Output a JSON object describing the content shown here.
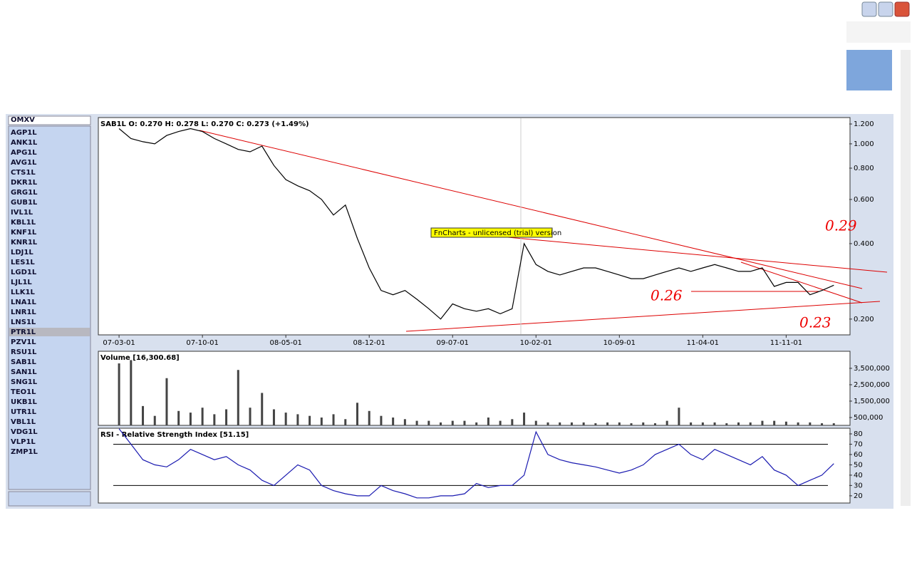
{
  "symbols": {
    "dropdown": "OMXV",
    "selected_index": 20,
    "items": [
      "AGP1L",
      "ANK1L",
      "APG1L",
      "AVG1L",
      "CTS1L",
      "DKR1L",
      "GRG1L",
      "GUB1L",
      "IVL1L",
      "KBL1L",
      "KNF1L",
      "KNR1L",
      "LDJ1L",
      "LES1L",
      "LGD1L",
      "LJL1L",
      "LLK1L",
      "LNA1L",
      "LNR1L",
      "LNS1L",
      "PTR1L",
      "PZV1L",
      "RSU1L",
      "SAB1L",
      "SAN1L",
      "SNG1L",
      "TEO1L",
      "UKB1L",
      "UTR1L",
      "VBL1L",
      "VDG1L",
      "VLP1L",
      "ZMP1L"
    ]
  },
  "chart_data": [
    {
      "type": "line",
      "title": "SAB1L  O: 0.270  H: 0.278  L: 0.270  C: 0.273  (+1.49%)",
      "log": true,
      "color": "#000000",
      "annotations": [
        "FnCharts - unlicensed (trial) version",
        "0.29",
        "0.26",
        "0.23"
      ],
      "xlim": [
        -1.68,
        61.3
      ],
      "ylim": [
        0.173,
        1.273
      ],
      "xticks": [
        {
          "value": 0,
          "label": "07-03-01"
        },
        {
          "value": 7,
          "label": "07-10-01"
        },
        {
          "value": 14,
          "label": "08-05-01"
        },
        {
          "value": 21,
          "label": "08-12-01"
        },
        {
          "value": 28,
          "label": "09-07-01"
        },
        {
          "value": 35,
          "label": "10-02-01"
        },
        {
          "value": 42,
          "label": "10-09-01"
        },
        {
          "value": 49,
          "label": "11-04-01"
        },
        {
          "value": 56,
          "label": "11-11-01"
        }
      ],
      "yticks": [
        {
          "value": 1.2,
          "label": "1.200"
        },
        {
          "value": 1,
          "label": "1.000"
        },
        {
          "value": 0.8,
          "label": "0.800"
        },
        {
          "value": 0.6,
          "label": "0.600"
        },
        {
          "value": 0.4,
          "label": "0.400"
        },
        {
          "value": 0.2,
          "label": "0.200"
        }
      ],
      "x": [
        0,
        1,
        2,
        3,
        4,
        5,
        6,
        7,
        8,
        9,
        10,
        11,
        12,
        13,
        14,
        15,
        16,
        17,
        18,
        19,
        20,
        21,
        22,
        23,
        24,
        25,
        26,
        27,
        28,
        29,
        30,
        31,
        32,
        33,
        34,
        35,
        36,
        37,
        38,
        39,
        40,
        41,
        42,
        43,
        44,
        45,
        46,
        47,
        48,
        49,
        50,
        51,
        52,
        53,
        54,
        55,
        56,
        57,
        58,
        59,
        60
      ],
      "values": [
        1.15,
        1.05,
        1.02,
        1.0,
        1.08,
        1.12,
        1.15,
        1.12,
        1.05,
        1.0,
        0.95,
        0.93,
        0.98,
        0.82,
        0.72,
        0.68,
        0.65,
        0.6,
        0.52,
        0.57,
        0.42,
        0.32,
        0.26,
        0.25,
        0.26,
        0.24,
        0.22,
        0.2,
        0.23,
        0.22,
        0.215,
        0.22,
        0.21,
        0.22,
        0.4,
        0.33,
        0.31,
        0.3,
        0.31,
        0.32,
        0.32,
        0.31,
        0.3,
        0.29,
        0.29,
        0.3,
        0.31,
        0.32,
        0.31,
        0.32,
        0.33,
        0.32,
        0.31,
        0.31,
        0.32,
        0.27,
        0.28,
        0.28,
        0.25,
        0.26,
        0.273
      ]
    },
    {
      "type": "bar",
      "title": "Volume [16,300.68]",
      "color": "#444444",
      "xlim": [
        -1.68,
        61.3
      ],
      "ylim": [
        0,
        4540000
      ],
      "yticks": [
        {
          "value": 3500000,
          "label": "3,500,000"
        },
        {
          "value": 2500000,
          "label": "2,500,000"
        },
        {
          "value": 1500000,
          "label": "1,500,000"
        },
        {
          "value": 500000,
          "label": "500,000"
        }
      ],
      "x": [
        0,
        1,
        2,
        3,
        4,
        5,
        6,
        7,
        8,
        9,
        10,
        11,
        12,
        13,
        14,
        15,
        16,
        17,
        18,
        19,
        20,
        21,
        22,
        23,
        24,
        25,
        26,
        27,
        28,
        29,
        30,
        31,
        32,
        33,
        34,
        35,
        36,
        37,
        38,
        39,
        40,
        41,
        42,
        43,
        44,
        45,
        46,
        47,
        48,
        49,
        50,
        51,
        52,
        53,
        54,
        55,
        56,
        57,
        58,
        59,
        60
      ],
      "values": [
        3800000,
        4000000,
        1200000,
        600000,
        2900000,
        900000,
        800000,
        1100000,
        700000,
        1000000,
        3400000,
        1100000,
        2000000,
        1000000,
        800000,
        700000,
        600000,
        500000,
        700000,
        400000,
        1400000,
        900000,
        600000,
        500000,
        400000,
        300000,
        300000,
        200000,
        300000,
        300000,
        200000,
        500000,
        300000,
        400000,
        800000,
        300000,
        200000,
        200000,
        200000,
        200000,
        150000,
        200000,
        200000,
        150000,
        200000,
        150000,
        300000,
        1100000,
        200000,
        200000,
        200000,
        150000,
        200000,
        200000,
        300000,
        300000,
        250000,
        200000,
        200000,
        150000,
        150000
      ]
    },
    {
      "type": "line",
      "title": "RSI - Relative Strength Index [51.15]",
      "color": "#1a1ab0",
      "xlim": [
        -1.68,
        61.3
      ],
      "ylim": [
        13,
        85.5
      ],
      "yticks": [
        80,
        70,
        60,
        50,
        40,
        30,
        20
      ],
      "levels": [
        70,
        30
      ],
      "x": [
        0,
        1,
        2,
        3,
        4,
        5,
        6,
        7,
        8,
        9,
        10,
        11,
        12,
        13,
        14,
        15,
        16,
        17,
        18,
        19,
        20,
        21,
        22,
        23,
        24,
        25,
        26,
        27,
        28,
        29,
        30,
        31,
        32,
        33,
        34,
        35,
        36,
        37,
        38,
        39,
        40,
        41,
        42,
        43,
        44,
        45,
        46,
        47,
        48,
        49,
        50,
        51,
        52,
        53,
        54,
        55,
        56,
        57,
        58,
        59,
        60
      ],
      "values": [
        85,
        70,
        55,
        50,
        48,
        55,
        65,
        60,
        55,
        58,
        50,
        45,
        35,
        30,
        40,
        50,
        45,
        30,
        25,
        22,
        20,
        20,
        30,
        25,
        22,
        18,
        18,
        20,
        20,
        22,
        32,
        28,
        30,
        30,
        40,
        82,
        60,
        55,
        52,
        50,
        48,
        45,
        42,
        45,
        50,
        60,
        65,
        70,
        60,
        55,
        65,
        60,
        55,
        50,
        58,
        45,
        40,
        30,
        35,
        40,
        51.15
      ]
    }
  ]
}
